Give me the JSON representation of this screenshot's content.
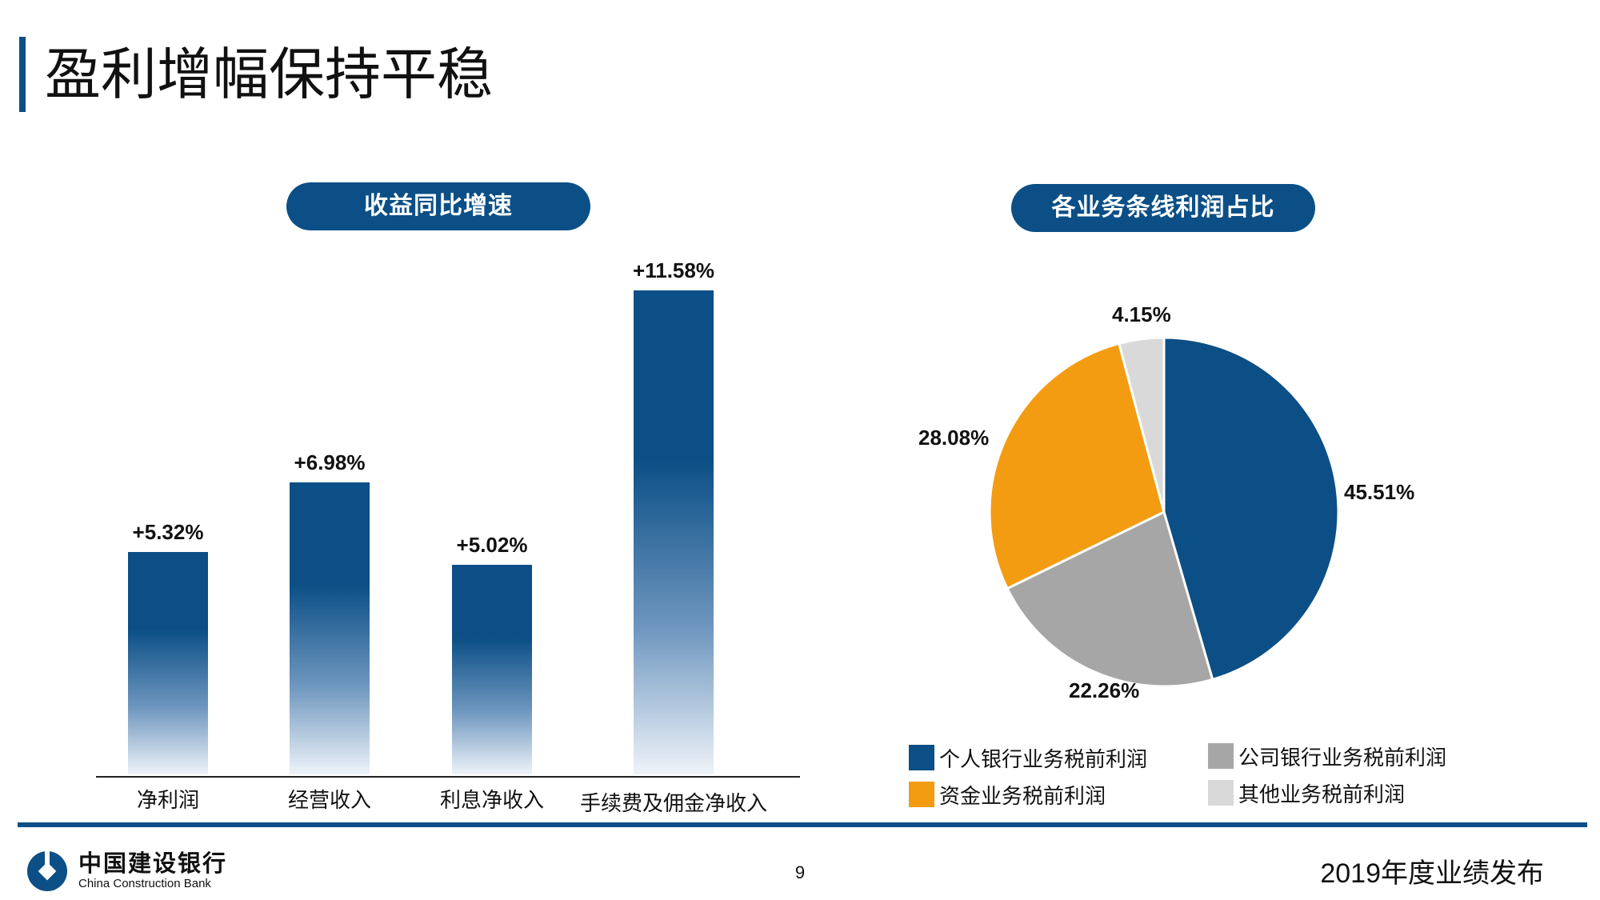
{
  "page": {
    "title": "盈利增幅保持平稳",
    "page_number": "9",
    "footer_right": "2019年度业绩发布",
    "logo_cn": "中国建设银行",
    "logo_en": "China Construction Bank",
    "accent_color": "#0b4f86"
  },
  "chart_data": [
    {
      "type": "bar",
      "title": "收益同比增速",
      "categories": [
        "净利润",
        "经营收入",
        "利息净收入",
        "手续费及佣金净收入"
      ],
      "values": [
        5.32,
        6.98,
        5.02,
        11.58
      ],
      "data_labels": [
        "+5.32%",
        "+6.98%",
        "+5.02%",
        "+11.58%"
      ],
      "ylim": [
        0,
        12
      ],
      "grid": false
    },
    {
      "type": "pie",
      "title": "各业务条线利润占比",
      "series": [
        {
          "name": "个人银行业务税前利润",
          "value": 45.51,
          "label": "45.51%",
          "color": "#0b4f86"
        },
        {
          "name": "公司银行业务税前利润",
          "value": 22.26,
          "label": "22.26%",
          "color": "#a6a6a6"
        },
        {
          "name": "资金业务税前利润",
          "value": 28.08,
          "label": "28.08%",
          "color": "#f39c12"
        },
        {
          "name": "其他业务税前利润",
          "value": 4.15,
          "label": "4.15%",
          "color": "#d9d9d9"
        }
      ],
      "legend_position": "bottom"
    }
  ]
}
